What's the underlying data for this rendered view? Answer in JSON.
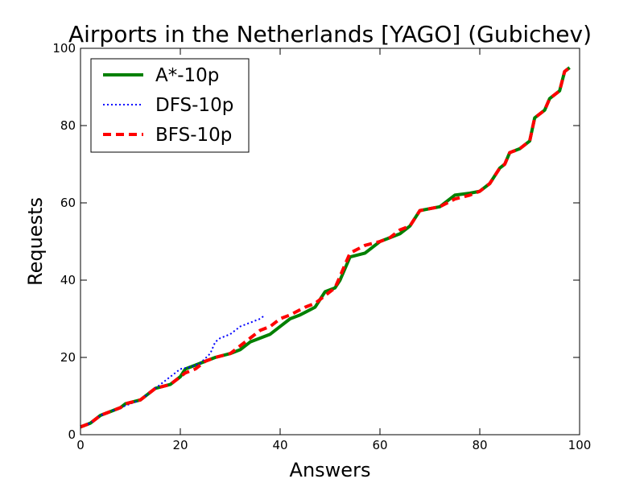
{
  "chart_data": {
    "type": "line",
    "title": "Airports in the Netherlands [YAGO] (Gubichev)",
    "xlabel": "Answers",
    "ylabel": "Requests",
    "xlim": [
      0,
      100
    ],
    "ylim": [
      0,
      100
    ],
    "xticks": [
      "0",
      "20",
      "40",
      "60",
      "80",
      "100"
    ],
    "yticks": [
      "0",
      "20",
      "40",
      "60",
      "80",
      "100"
    ],
    "grid": false,
    "legend_position": "top-left",
    "series": [
      {
        "name": "A*-10p",
        "color": "#008000",
        "style": "solid",
        "x": [
          0,
          2,
          4,
          6,
          8,
          9,
          12,
          15,
          18,
          20,
          21,
          23,
          25,
          27,
          30,
          32,
          34,
          36,
          38,
          40,
          42,
          44,
          47,
          48,
          49,
          51,
          52,
          54,
          57,
          60,
          62,
          64,
          66,
          67,
          68,
          70,
          72,
          75,
          78,
          80,
          82,
          84,
          85,
          86,
          88,
          90,
          91,
          93,
          94,
          96,
          97,
          98
        ],
        "y": [
          2,
          3,
          5,
          6,
          7,
          8,
          9,
          12,
          13,
          15,
          17,
          18,
          19,
          20,
          21,
          22,
          24,
          25,
          26,
          28,
          30,
          31,
          33,
          35,
          37,
          38,
          40,
          46,
          47,
          50,
          51,
          52,
          54,
          56,
          58,
          58.5,
          59,
          62,
          62.5,
          63,
          65,
          69,
          70,
          73,
          74,
          76,
          82,
          84,
          87,
          89,
          94,
          95
        ]
      },
      {
        "name": "DFS-10p",
        "color": "#0000ff",
        "style": "dotted",
        "x": [
          0,
          2,
          4,
          6,
          8,
          10,
          12,
          14,
          16,
          18,
          20,
          22,
          24,
          26,
          27,
          28,
          30,
          32,
          34,
          36,
          37
        ],
        "y": [
          2,
          3,
          5,
          6,
          7,
          8,
          9,
          11,
          13,
          15,
          17,
          17.5,
          18.5,
          21,
          24,
          25,
          26,
          28,
          29,
          30,
          31
        ]
      },
      {
        "name": "BFS-10p",
        "color": "#ff0000",
        "style": "dashed",
        "x": [
          0,
          2,
          4,
          6,
          8,
          9,
          12,
          15,
          18,
          20,
          21,
          23,
          25,
          27,
          30,
          32,
          34,
          36,
          38,
          40,
          42,
          45,
          47,
          49,
          51,
          53,
          54,
          57,
          60,
          62,
          64,
          66,
          67,
          68,
          70,
          72,
          75,
          78,
          80,
          82,
          84,
          85,
          86,
          88,
          90,
          91,
          93,
          94,
          96,
          97,
          98
        ],
        "y": [
          2,
          3,
          5,
          6,
          7,
          8,
          9,
          12,
          13,
          15,
          16,
          17,
          19,
          20,
          21,
          23,
          25,
          27,
          28,
          30,
          31,
          33,
          34,
          36,
          38,
          44,
          47,
          49,
          50,
          51,
          53,
          54,
          56,
          58,
          58.5,
          59,
          61,
          62,
          63,
          65,
          69,
          70,
          73,
          74,
          76,
          82,
          84,
          87,
          89,
          94,
          95
        ]
      }
    ]
  }
}
